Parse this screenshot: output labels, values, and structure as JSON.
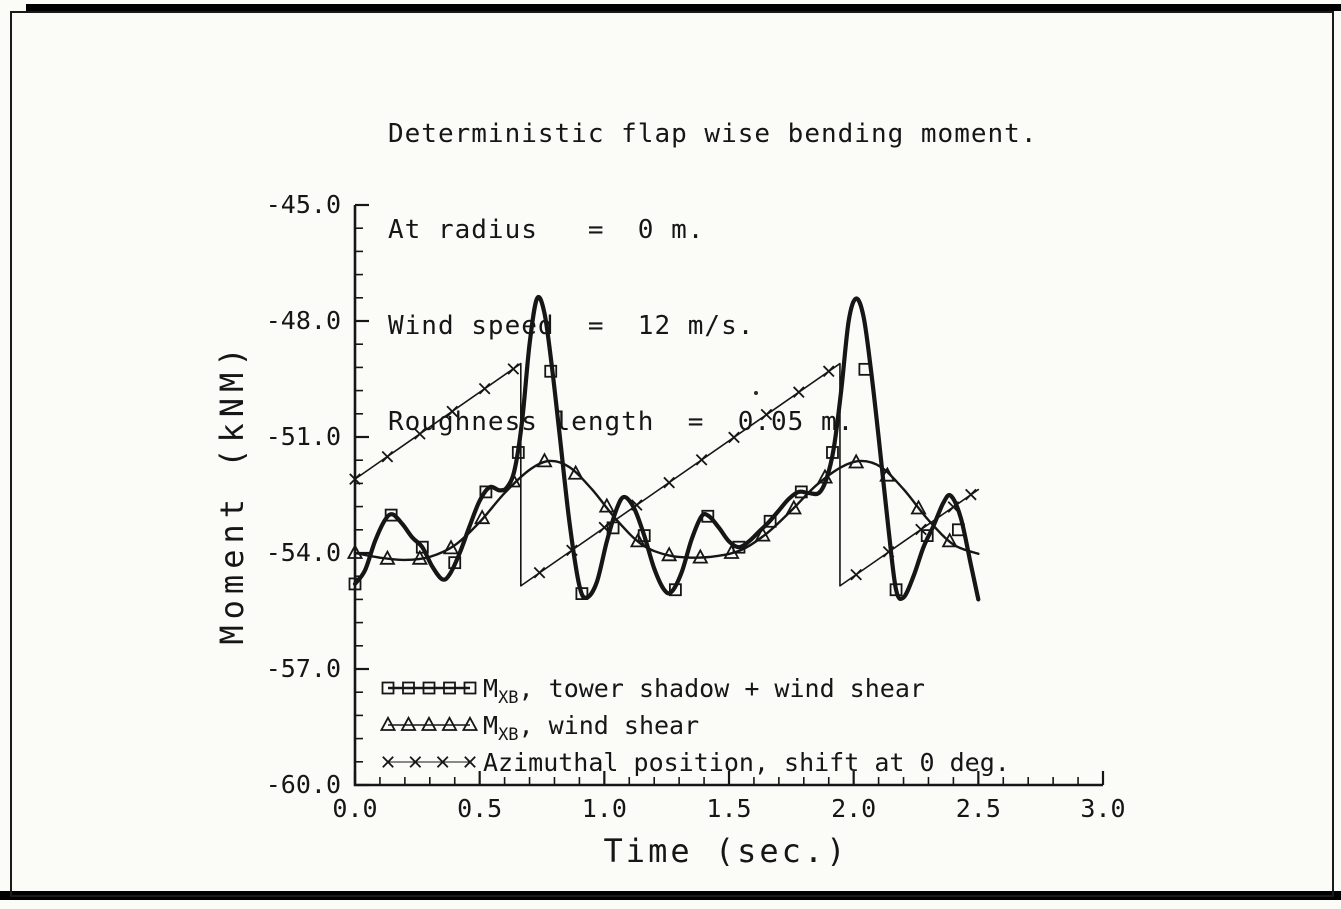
{
  "scan": {
    "ink": "#161616",
    "paper": "#fbfbf8"
  },
  "chart_data": {
    "type": "line",
    "title_lines": [
      "Deterministic flap wise bending moment.",
      "At radius   =  0 m.",
      "Wind speed  =  12 m/s.",
      "Roughness length  =  0.05 m."
    ],
    "xlabel": "Time  (sec.)",
    "ylabel": "Moment  (kNM)",
    "xlim": [
      0.0,
      3.0
    ],
    "ylim": [
      -60.0,
      -45.0
    ],
    "xticks": [
      0.0,
      0.5,
      1.0,
      1.5,
      2.0,
      2.5,
      3.0
    ],
    "xtick_labels": [
      "0.0",
      "0.5",
      "1.0",
      "1.5",
      "2.0",
      "2.5",
      "3.0"
    ],
    "yticks": [
      -45.0,
      -48.0,
      -51.0,
      -54.0,
      -57.0,
      -60.0
    ],
    "ytick_labels": [
      "-45.0",
      "-48.0",
      "-51.0",
      "-54.0",
      "-57.0",
      "-60.0"
    ],
    "x_minor_step": 0.1,
    "y_minor_step": 0.6,
    "grid": false,
    "legend_position": "lower-left",
    "series": [
      {
        "name": "MXB, tower shadow + wind shear",
        "marker": "square",
        "stroke_width": 4.2,
        "smooth": true,
        "points": [
          [
            0.0,
            -54.8
          ],
          [
            0.04,
            -54.45
          ],
          [
            0.08,
            -53.7
          ],
          [
            0.12,
            -53.15
          ],
          [
            0.15,
            -53.0
          ],
          [
            0.19,
            -53.25
          ],
          [
            0.23,
            -53.6
          ],
          [
            0.27,
            -53.85
          ],
          [
            0.31,
            -54.35
          ],
          [
            0.35,
            -54.68
          ],
          [
            0.38,
            -54.55
          ],
          [
            0.42,
            -54.0
          ],
          [
            0.46,
            -53.3
          ],
          [
            0.5,
            -52.65
          ],
          [
            0.54,
            -52.3
          ],
          [
            0.58,
            -52.38
          ],
          [
            0.61,
            -52.3
          ],
          [
            0.64,
            -51.85
          ],
          [
            0.67,
            -50.6
          ],
          [
            0.7,
            -48.6
          ],
          [
            0.73,
            -47.42
          ],
          [
            0.76,
            -47.8
          ],
          [
            0.79,
            -49.2
          ],
          [
            0.82,
            -50.9
          ],
          [
            0.86,
            -53.2
          ],
          [
            0.9,
            -54.85
          ],
          [
            0.93,
            -55.15
          ],
          [
            0.97,
            -54.75
          ],
          [
            1.01,
            -53.7
          ],
          [
            1.05,
            -52.85
          ],
          [
            1.08,
            -52.55
          ],
          [
            1.12,
            -52.85
          ],
          [
            1.16,
            -53.55
          ],
          [
            1.2,
            -54.4
          ],
          [
            1.24,
            -54.95
          ],
          [
            1.27,
            -55.0
          ],
          [
            1.31,
            -54.5
          ],
          [
            1.35,
            -53.65
          ],
          [
            1.39,
            -53.05
          ],
          [
            1.42,
            -53.05
          ],
          [
            1.46,
            -53.35
          ],
          [
            1.5,
            -53.7
          ],
          [
            1.54,
            -53.85
          ],
          [
            1.58,
            -53.7
          ],
          [
            1.62,
            -53.45
          ],
          [
            1.66,
            -53.2
          ],
          [
            1.7,
            -52.9
          ],
          [
            1.74,
            -52.6
          ],
          [
            1.78,
            -52.42
          ],
          [
            1.82,
            -52.45
          ],
          [
            1.86,
            -52.45
          ],
          [
            1.89,
            -52.1
          ],
          [
            1.92,
            -51.3
          ],
          [
            1.95,
            -49.8
          ],
          [
            1.98,
            -48.0
          ],
          [
            2.01,
            -47.42
          ],
          [
            2.04,
            -47.9
          ],
          [
            2.07,
            -49.3
          ],
          [
            2.1,
            -51.0
          ],
          [
            2.14,
            -53.4
          ],
          [
            2.17,
            -54.95
          ],
          [
            2.2,
            -55.15
          ],
          [
            2.24,
            -54.6
          ],
          [
            2.28,
            -53.85
          ],
          [
            2.32,
            -53.3
          ],
          [
            2.36,
            -52.7
          ],
          [
            2.39,
            -52.52
          ],
          [
            2.43,
            -53.1
          ],
          [
            2.47,
            -54.3
          ],
          [
            2.5,
            -55.2
          ]
        ],
        "markers": [
          [
            0.0,
            -54.8
          ],
          [
            0.145,
            -53.02
          ],
          [
            0.27,
            -53.85
          ],
          [
            0.4,
            -54.25
          ],
          [
            0.525,
            -52.42
          ],
          [
            0.655,
            -51.4
          ],
          [
            0.785,
            -49.3
          ],
          [
            0.91,
            -55.05
          ],
          [
            1.035,
            -53.35
          ],
          [
            1.16,
            -53.55
          ],
          [
            1.285,
            -54.95
          ],
          [
            1.415,
            -53.05
          ],
          [
            1.54,
            -53.85
          ],
          [
            1.665,
            -53.18
          ],
          [
            1.79,
            -52.42
          ],
          [
            1.915,
            -51.4
          ],
          [
            2.045,
            -49.25
          ],
          [
            2.17,
            -54.95
          ],
          [
            2.295,
            -53.55
          ],
          [
            2.42,
            -53.4
          ]
        ]
      },
      {
        "name": "MXB, wind shear",
        "marker": "triangle",
        "stroke_width": 2.4,
        "smooth": true,
        "points": [
          [
            0.0,
            -54.0
          ],
          [
            0.1,
            -54.12
          ],
          [
            0.2,
            -54.18
          ],
          [
            0.3,
            -54.1
          ],
          [
            0.4,
            -53.8
          ],
          [
            0.5,
            -53.2
          ],
          [
            0.6,
            -52.45
          ],
          [
            0.7,
            -51.85
          ],
          [
            0.78,
            -51.62
          ],
          [
            0.86,
            -51.78
          ],
          [
            0.95,
            -52.35
          ],
          [
            1.05,
            -53.15
          ],
          [
            1.15,
            -53.78
          ],
          [
            1.25,
            -54.05
          ],
          [
            1.35,
            -54.12
          ],
          [
            1.45,
            -54.08
          ],
          [
            1.55,
            -53.92
          ],
          [
            1.65,
            -53.5
          ],
          [
            1.75,
            -52.9
          ],
          [
            1.85,
            -52.25
          ],
          [
            1.95,
            -51.78
          ],
          [
            2.03,
            -51.62
          ],
          [
            2.11,
            -51.78
          ],
          [
            2.2,
            -52.35
          ],
          [
            2.3,
            -53.15
          ],
          [
            2.4,
            -53.78
          ],
          [
            2.5,
            -54.02
          ]
        ],
        "markers": [
          [
            0.0,
            -54.0
          ],
          [
            0.13,
            -54.15
          ],
          [
            0.26,
            -54.15
          ],
          [
            0.385,
            -53.88
          ],
          [
            0.51,
            -53.1
          ],
          [
            0.635,
            -52.15
          ],
          [
            0.76,
            -51.63
          ],
          [
            0.885,
            -51.95
          ],
          [
            1.01,
            -52.8
          ],
          [
            1.135,
            -53.7
          ],
          [
            1.26,
            -54.06
          ],
          [
            1.385,
            -54.12
          ],
          [
            1.51,
            -54.0
          ],
          [
            1.635,
            -53.55
          ],
          [
            1.76,
            -52.85
          ],
          [
            1.885,
            -52.05
          ],
          [
            2.01,
            -51.66
          ],
          [
            2.135,
            -52.0
          ],
          [
            2.26,
            -52.85
          ],
          [
            2.385,
            -53.7
          ]
        ]
      },
      {
        "name": "Azimuthal position, shift at 0 deg.",
        "marker": "x",
        "stroke_width": 1.6,
        "smooth": false,
        "points": [
          [
            0.0,
            -52.09
          ],
          [
            0.665,
            -49.1
          ],
          [
            0.665,
            -54.85
          ],
          [
            1.945,
            -49.1
          ],
          [
            1.945,
            -54.85
          ],
          [
            2.5,
            -52.36
          ]
        ],
        "markers": [
          [
            0.0,
            -52.09
          ],
          [
            0.13,
            -51.51
          ],
          [
            0.26,
            -50.92
          ],
          [
            0.39,
            -50.34
          ],
          [
            0.52,
            -49.75
          ],
          [
            0.635,
            -49.24
          ],
          [
            0.74,
            -54.51
          ],
          [
            0.87,
            -53.93
          ],
          [
            1.0,
            -53.34
          ],
          [
            1.13,
            -52.76
          ],
          [
            1.26,
            -52.18
          ],
          [
            1.39,
            -51.59
          ],
          [
            1.52,
            -51.01
          ],
          [
            1.65,
            -50.42
          ],
          [
            1.78,
            -49.84
          ],
          [
            1.9,
            -49.3
          ],
          [
            2.01,
            -54.56
          ],
          [
            2.14,
            -53.97
          ],
          [
            2.27,
            -53.39
          ],
          [
            2.4,
            -52.81
          ],
          [
            2.47,
            -52.49
          ]
        ]
      }
    ],
    "legend": [
      {
        "marker": "square",
        "label_pre": "M",
        "label_sub": "XB",
        "label_post": ",  tower shadow + wind shear"
      },
      {
        "marker": "triangle",
        "label_pre": "M",
        "label_sub": "XB",
        "label_post": ",  wind shear"
      },
      {
        "marker": "x",
        "label_pre": "Azimuthal position, shift at 0 deg.",
        "label_sub": "",
        "label_post": ""
      }
    ]
  }
}
